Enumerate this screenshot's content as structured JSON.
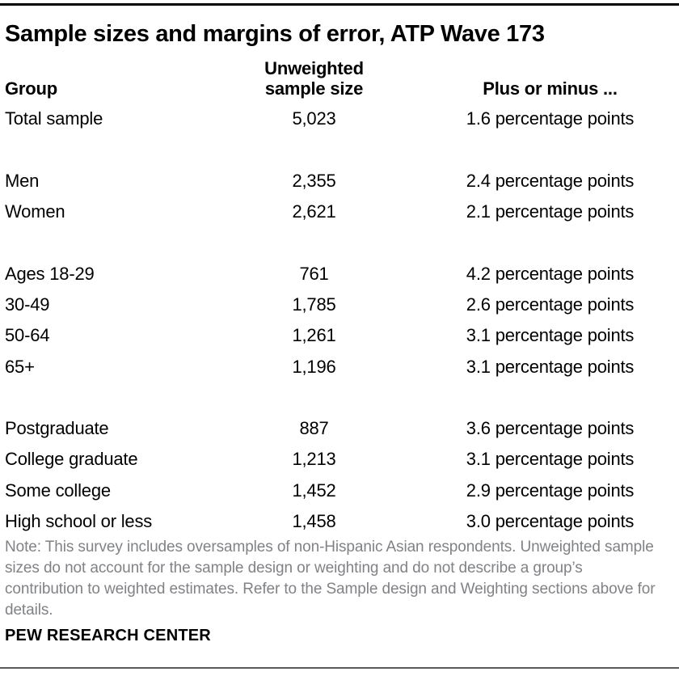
{
  "title": "Sample sizes and margins of error, ATP Wave 173",
  "colors": {
    "text": "#000000",
    "note_gray": "#808285",
    "top_rule": "#000000",
    "bottom_rule": "#5a5a5c"
  },
  "chart_data": {
    "type": "table",
    "title": "Sample sizes and margins of error, ATP Wave 173",
    "columns": [
      "Group",
      "Unweighted sample size",
      "Plus or minus ..."
    ],
    "rows": [
      {
        "group": "Total sample",
        "size": "5,023",
        "moe": "1.6 percentage points"
      },
      {
        "group": "Men",
        "size": "2,355",
        "moe": "2.4 percentage points"
      },
      {
        "group": "Women",
        "size": "2,621",
        "moe": "2.1 percentage points"
      },
      {
        "group": "Ages 18-29",
        "size": "761",
        "moe": "4.2 percentage points"
      },
      {
        "group": "30-49",
        "size": "1,785",
        "moe": "2.6 percentage points"
      },
      {
        "group": "50-64",
        "size": "1,261",
        "moe": "3.1 percentage points"
      },
      {
        "group": "65+",
        "size": "1,196",
        "moe": "3.1 percentage points"
      },
      {
        "group": "Postgraduate",
        "size": "887",
        "moe": "3.6 percentage points"
      },
      {
        "group": "College graduate",
        "size": "1,213",
        "moe": "3.1 percentage points"
      },
      {
        "group": "Some college",
        "size": "1,452",
        "moe": "2.9 percentage points"
      },
      {
        "group": "High school or less",
        "size": "1,458",
        "moe": "3.0 percentage points"
      }
    ],
    "section_breaks_after_row_index": [
      0,
      2,
      6
    ],
    "note": "Note: This survey includes oversamples of non-Hispanic Asian respondents. Unweighted sample sizes do not account for the sample design or weighting and do not describe a group’s contribution to weighted estimates. Refer to the Sample design and Weighting sections above for details.",
    "source": "PEW RESEARCH CENTER"
  }
}
